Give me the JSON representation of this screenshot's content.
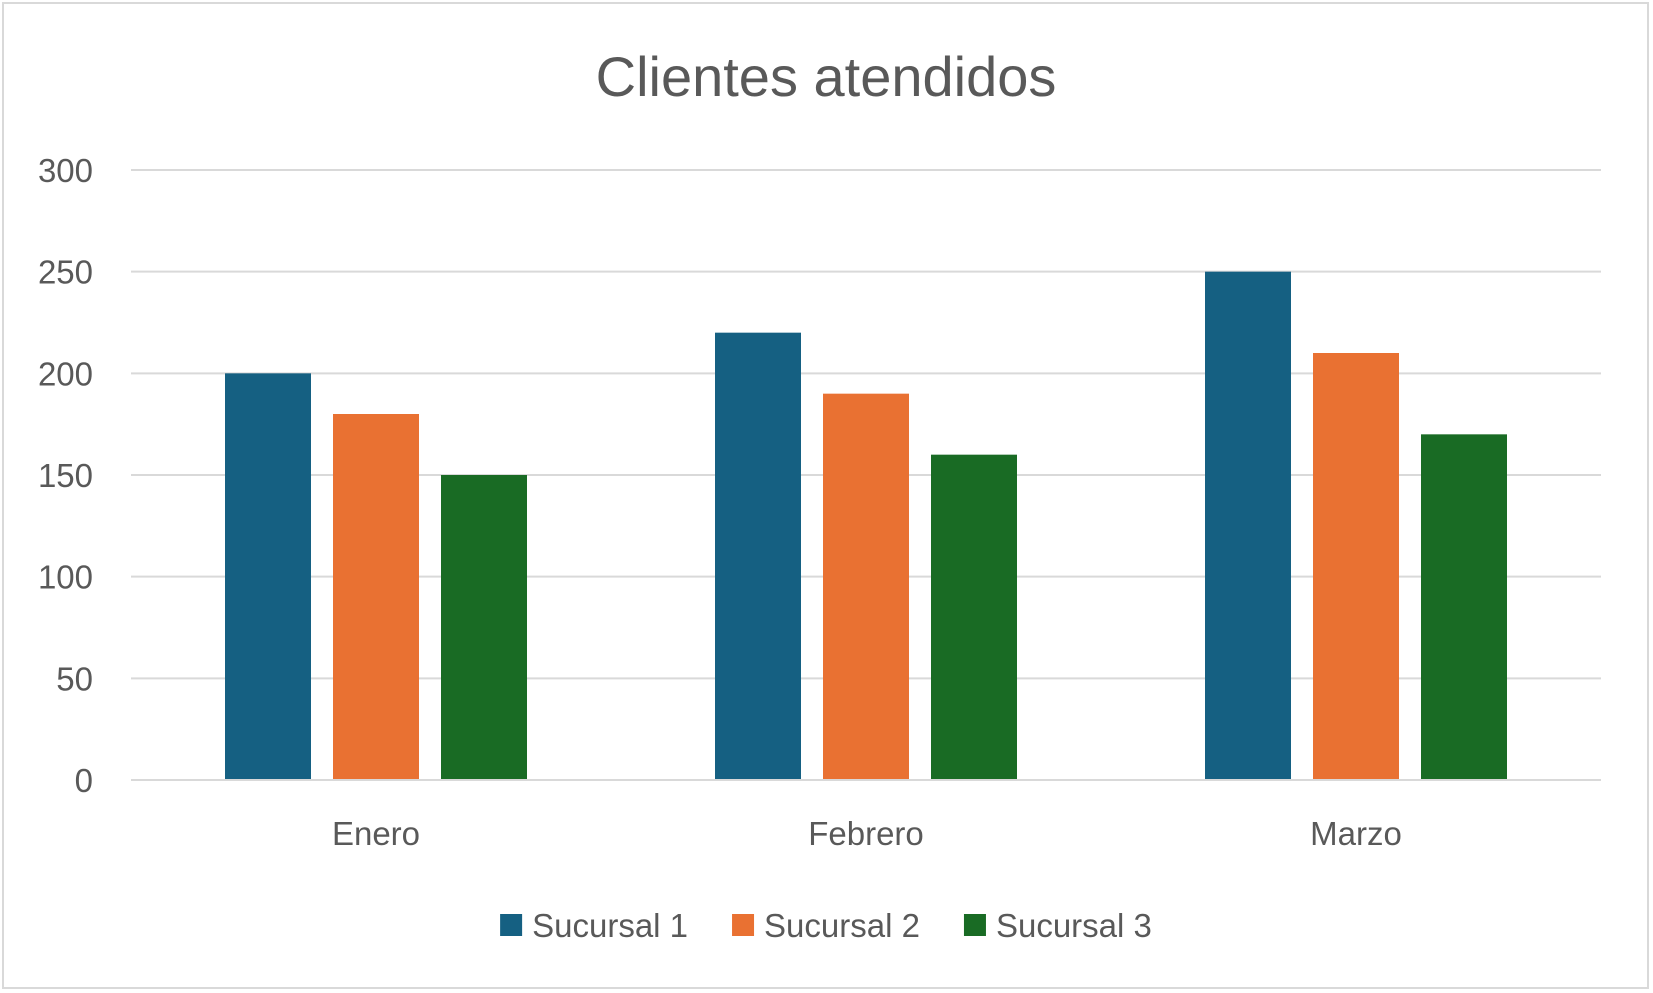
{
  "chart_data": {
    "type": "bar",
    "title": "Clientes atendidos",
    "xlabel": "",
    "ylabel": "",
    "categories": [
      "Enero",
      "Febrero",
      "Marzo"
    ],
    "series": [
      {
        "name": "Sucursal 1",
        "color": "#156082",
        "values": [
          200,
          220,
          250
        ]
      },
      {
        "name": "Sucursal 2",
        "color": "#E97132",
        "values": [
          180,
          190,
          210
        ]
      },
      {
        "name": "Sucursal 3",
        "color": "#196B24",
        "values": [
          150,
          160,
          170
        ]
      }
    ],
    "ylim": [
      0,
      300
    ],
    "yticks": [
      0,
      50,
      100,
      150,
      200,
      250,
      300
    ],
    "grid": true,
    "legend_position": "bottom"
  }
}
